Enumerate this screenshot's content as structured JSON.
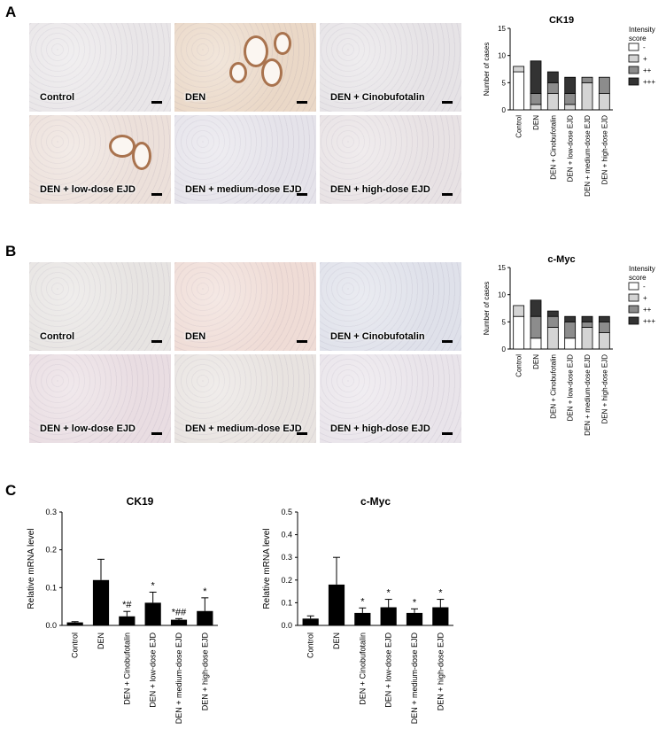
{
  "panels": {
    "A": {
      "letter": "A",
      "tiles": [
        {
          "label": "Control",
          "tint": "#e9e6e8"
        },
        {
          "label": "DEN",
          "tint": "#ead8c7"
        },
        {
          "label": "DEN + Cinobufotalin",
          "tint": "#e6e3e6"
        },
        {
          "label": "DEN + low-dose EJD",
          "tint": "#ece0da"
        },
        {
          "label": "DEN + medium-dose EJD",
          "tint": "#e5e3ea"
        },
        {
          "label": "DEN + high-dose EJD",
          "tint": "#e8e2e4"
        }
      ]
    },
    "B": {
      "letter": "B",
      "tiles": [
        {
          "label": "Control",
          "tint": "#e7e4e2"
        },
        {
          "label": "DEN",
          "tint": "#efdcd6"
        },
        {
          "label": "DEN + Cinobufotalin",
          "tint": "#dfe1ea"
        },
        {
          "label": "DEN + low-dose EJD",
          "tint": "#e9dde2"
        },
        {
          "label": "DEN + medium-dose EJD",
          "tint": "#e8e3e0"
        },
        {
          "label": "DEN + high-dose EJD",
          "tint": "#e9e4ea"
        }
      ]
    },
    "C": {
      "letter": "C"
    }
  },
  "legend": {
    "title_line1": "Intensity",
    "title_line2": "score",
    "entries": [
      {
        "label": "-",
        "color": "#ffffff"
      },
      {
        "label": "+",
        "color": "#d4d4d4"
      },
      {
        "label": "++",
        "color": "#8c8c8c"
      },
      {
        "label": "+++",
        "color": "#333333"
      }
    ]
  },
  "chart_data": [
    {
      "type": "bar",
      "stacked": true,
      "title": "CK19",
      "ylabel": "Number of cases",
      "ylim": [
        0,
        15
      ],
      "yticks": [
        0,
        5,
        10,
        15
      ],
      "categories": [
        "Control",
        "DEN",
        "DEN + Cinobufotalin",
        "DEN + low-dose EJD",
        "DEN + medium-dose EJD",
        "DEN + high-dose EJD"
      ],
      "series": [
        {
          "name": "-",
          "values": [
            7,
            0,
            0,
            0,
            0,
            0
          ]
        },
        {
          "name": "+",
          "values": [
            1,
            1,
            3,
            1,
            5,
            3
          ]
        },
        {
          "name": "++",
          "values": [
            0,
            2,
            2,
            2,
            1,
            3
          ]
        },
        {
          "name": "+++",
          "values": [
            0,
            6,
            2,
            3,
            0,
            0
          ]
        }
      ]
    },
    {
      "type": "bar",
      "stacked": true,
      "title": "c-Myc",
      "ylabel": "Number of cases",
      "ylim": [
        0,
        15
      ],
      "yticks": [
        0,
        5,
        10,
        15
      ],
      "categories": [
        "Control",
        "DEN",
        "DEN + Cinobufotalin",
        "DEN + low-dose EJD",
        "DEN + medium-dose EJD",
        "DEN + high-dose EJD"
      ],
      "series": [
        {
          "name": "-",
          "values": [
            6,
            2,
            0,
            2,
            0,
            0
          ]
        },
        {
          "name": "+",
          "values": [
            2,
            0,
            4,
            0,
            4,
            3
          ]
        },
        {
          "name": "++",
          "values": [
            0,
            4,
            2,
            3,
            1,
            2
          ]
        },
        {
          "name": "+++",
          "values": [
            0,
            3,
            1,
            1,
            1,
            1
          ]
        }
      ]
    },
    {
      "type": "bar",
      "title": "CK19",
      "ylabel": "Relative mRNA level",
      "ylim": [
        0,
        0.3
      ],
      "yticks": [
        0.0,
        0.1,
        0.2,
        0.3
      ],
      "yticklabels": [
        "0.0",
        "0.1",
        "0.2",
        "0.3"
      ],
      "categories": [
        "Control",
        "DEN",
        "DEN + Cinobufotalin",
        "DEN + low-dose EJD",
        "DEN + medium-dose EJD",
        "DEN + high-dose EJD"
      ],
      "values": [
        0.008,
        0.12,
        0.024,
        0.06,
        0.015,
        0.038
      ],
      "errors": [
        0.002,
        0.055,
        0.013,
        0.028,
        0.003,
        0.035
      ],
      "annotations": [
        "",
        "",
        "*#",
        "*",
        "*##",
        "*"
      ]
    },
    {
      "type": "bar",
      "title": "c-Myc",
      "ylabel": "Relative mRNA level",
      "ylim": [
        0,
        0.5
      ],
      "yticks": [
        0.0,
        0.1,
        0.2,
        0.3,
        0.4,
        0.5
      ],
      "yticklabels": [
        "0.0",
        "0.1",
        "0.2",
        "0.3",
        "0.4",
        "0.5"
      ],
      "categories": [
        "Control",
        "DEN",
        "DEN + Cinobufotalin",
        "DEN + low-dose EJD",
        "DEN + medium-dose EJD",
        "DEN + high-dose EJD"
      ],
      "values": [
        0.03,
        0.18,
        0.055,
        0.08,
        0.055,
        0.08
      ],
      "errors": [
        0.012,
        0.12,
        0.022,
        0.035,
        0.018,
        0.035
      ],
      "annotations": [
        "",
        "",
        "*",
        "*",
        "*",
        "*"
      ]
    }
  ]
}
